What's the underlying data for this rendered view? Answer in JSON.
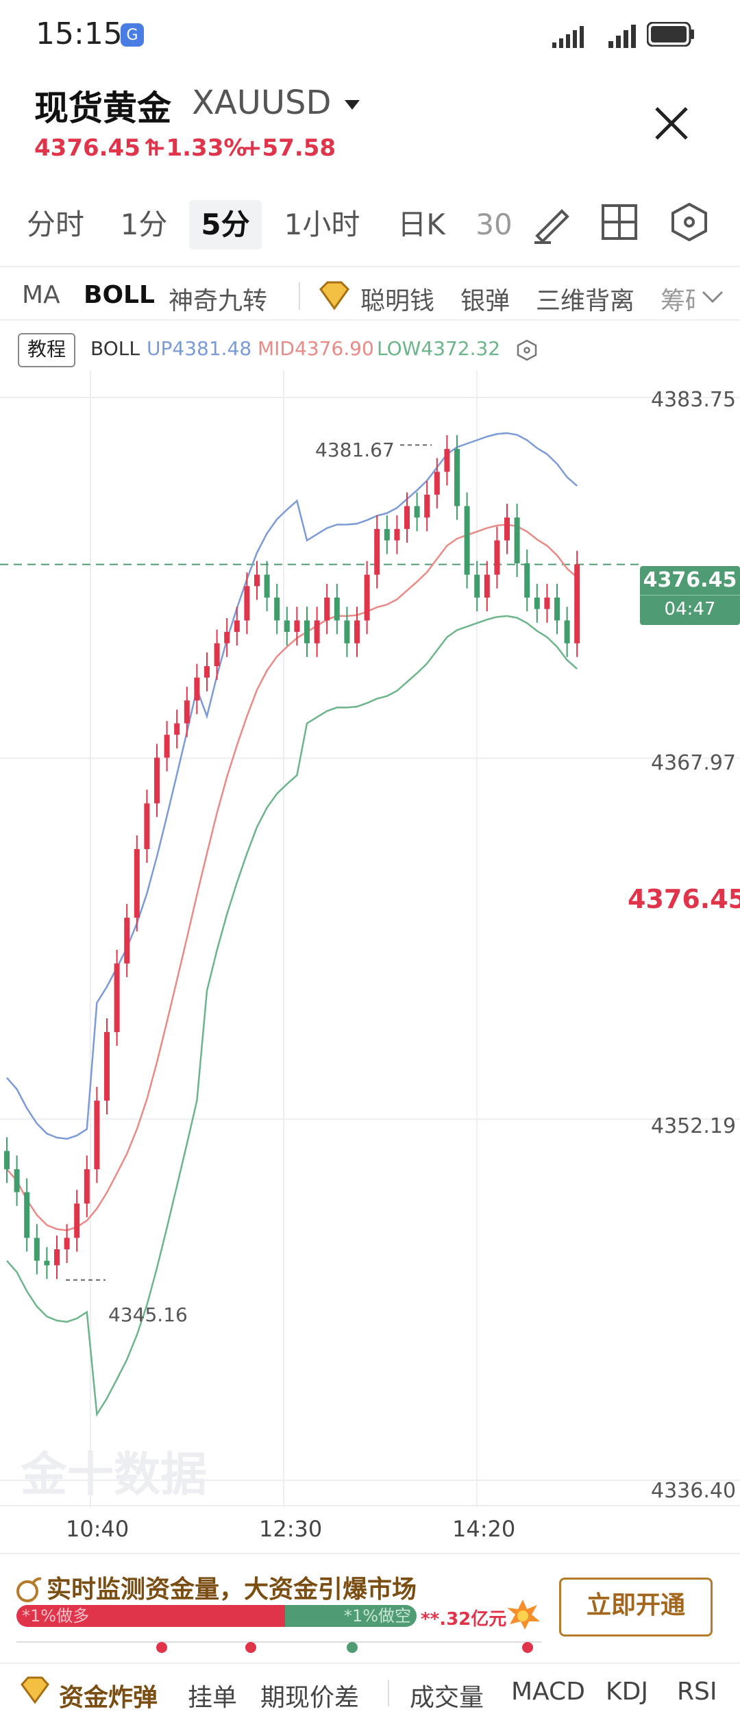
{
  "status_bar": {
    "time": "15:15",
    "app_badge": "G"
  },
  "header": {
    "title": "现货黄金",
    "symbol": "XAUUSD",
    "price": "4376.45",
    "change_pct": "+1.33%",
    "change_abs": "+57.58",
    "up_arrow": "↑",
    "dropdown_icon": "triangle-down-icon",
    "close_icon": "close-icon"
  },
  "timeframes": [
    "分时",
    "1分",
    "5分",
    "1小时",
    "日K",
    "30"
  ],
  "active_timeframe": "5分",
  "tools": [
    "draw-tool-icon",
    "grid-layout-icon",
    "settings-hexagon-icon"
  ],
  "indicators": [
    "MA",
    "BOLL",
    "神奇九转",
    "聪明钱",
    "银弹",
    "三维背离",
    "筹码"
  ],
  "active_indicator": "BOLL",
  "legend": {
    "tutorial": "教程",
    "name": "BOLL",
    "up": "UP4381.48",
    "mid": "MID4376.90",
    "low": "LOW4372.32"
  },
  "chart_data": {
    "type": "candlestick",
    "symbol": "XAUUSD",
    "interval": "5分",
    "ylim": [
      4336.4,
      4383.75
    ],
    "y_ticks": [
      "4383.75",
      "4367.97",
      "4352.19",
      "4336.40"
    ],
    "x_ticks": [
      "10:40",
      "12:30",
      "14:20"
    ],
    "current_price": "4376.45",
    "countdown": "04:47",
    "annotations": {
      "high": "4381.67",
      "low": "4345.16"
    },
    "price_marker": "4376.45",
    "bands": {
      "up_color": "#7b9ad8",
      "mid_color": "#e98a86",
      "low_color": "#6cb48a"
    }
  },
  "watermark": "金十数据",
  "promo": {
    "title": "实时监测资金量，大资金引爆市场",
    "bull_label": "*1%做多",
    "bear_label": "*1%做空",
    "amount": "**.32亿元",
    "button": "立即开通"
  },
  "bottom_tabs": [
    "资金炸弹",
    "挂单",
    "期现价差",
    "成交量",
    "MACD",
    "KDJ",
    "RSI"
  ],
  "colors": {
    "up": "#e0344b",
    "down": "#3f9c6b",
    "accent": "#b57b2a"
  }
}
